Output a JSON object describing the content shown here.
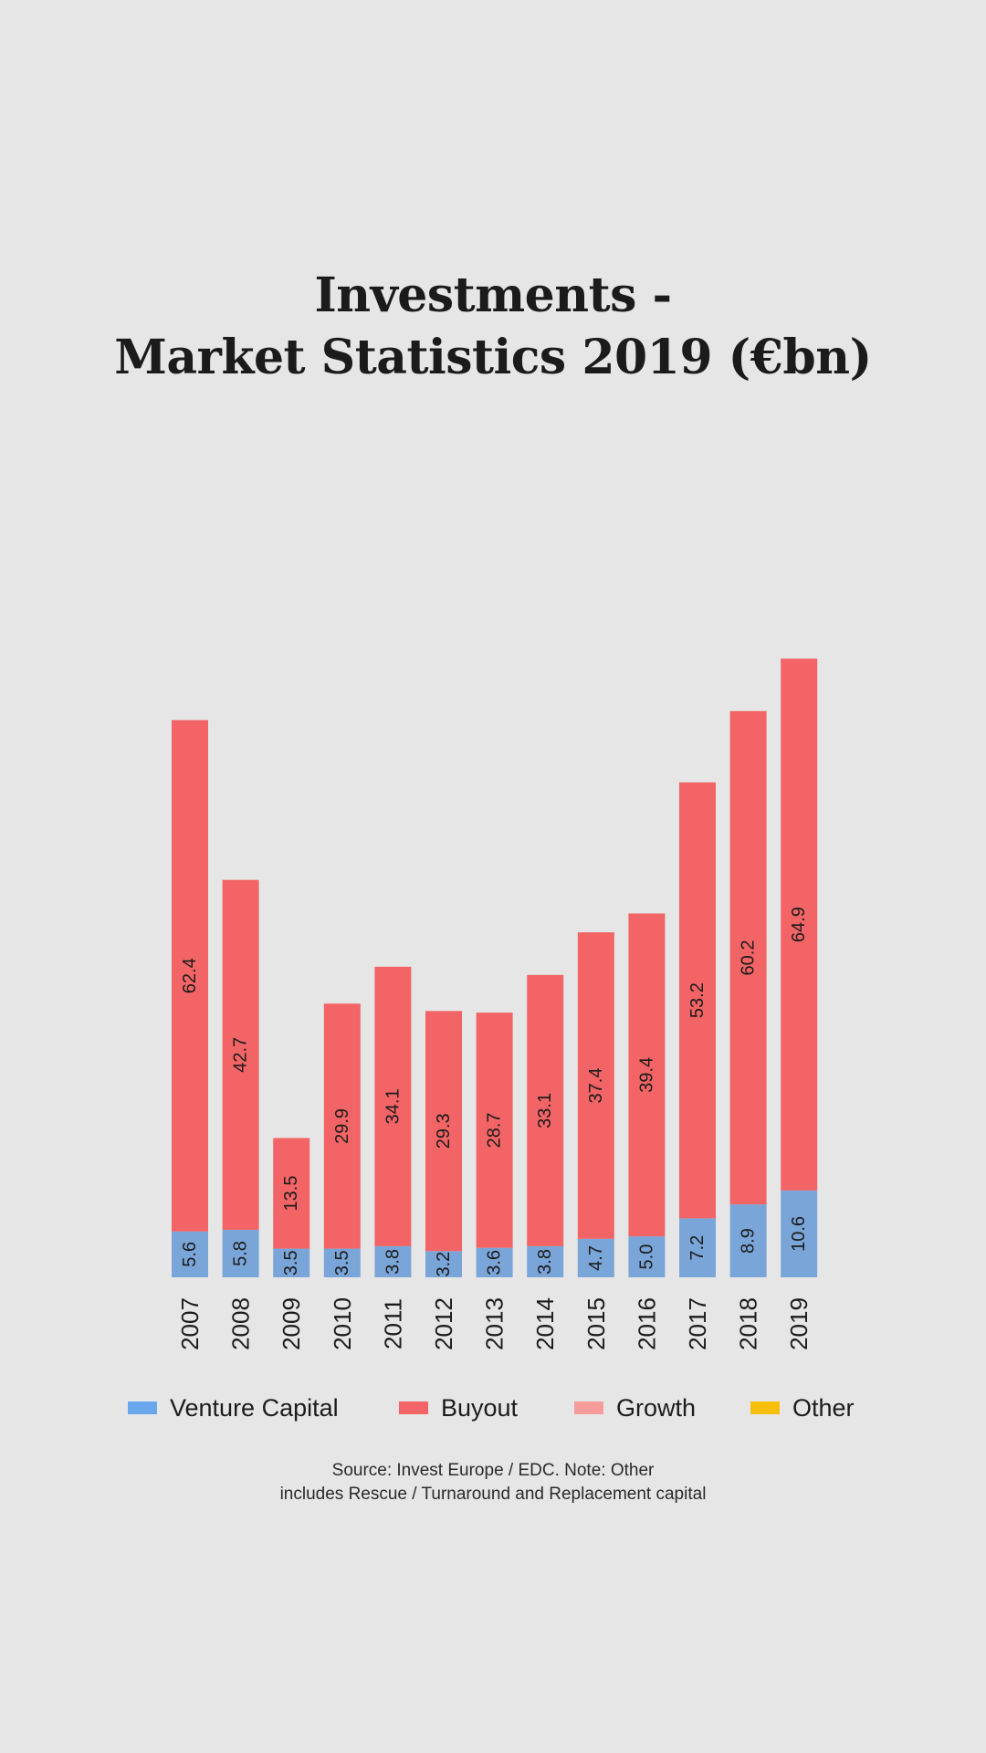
{
  "title_line1": "Investments -",
  "title_line2": "Market Statistics 2019 (€bn)",
  "source_line1": "Source: Invest Europe / EDC. Note: Other",
  "source_line2": "includes Rescue / Turnaround and Replacement capital",
  "colors": {
    "background": "#e7e6e7",
    "venture_capital": "#7aa5d8",
    "buyout": "#f26465",
    "growth": "#f79c9b",
    "other": "#f8bf0a",
    "legend_venture_capital": "#6aa8ee"
  },
  "chart_data": {
    "type": "bar",
    "stacked": true,
    "categories": [
      "2007",
      "2008",
      "2009",
      "2010",
      "2011",
      "2012",
      "2013",
      "2014",
      "2015",
      "2016",
      "2017",
      "2018",
      "2019"
    ],
    "series": [
      {
        "name": "Venture Capital",
        "values": [
          5.6,
          5.8,
          3.5,
          3.5,
          3.8,
          3.2,
          3.6,
          3.8,
          4.7,
          5.0,
          7.2,
          8.9,
          10.6
        ]
      },
      {
        "name": "Buyout",
        "values": [
          62.4,
          42.7,
          13.5,
          29.9,
          34.1,
          29.3,
          28.7,
          33.1,
          37.4,
          39.4,
          53.2,
          60.2,
          64.9
        ]
      },
      {
        "name": "Growth",
        "values": [
          0,
          0,
          0,
          0,
          0,
          0,
          0,
          0,
          0,
          0,
          0,
          0,
          0
        ]
      },
      {
        "name": "Other",
        "values": [
          0,
          0,
          0,
          0,
          0,
          0,
          0,
          0,
          0,
          0,
          0,
          0,
          0
        ]
      }
    ],
    "data_labels": true,
    "grid": false,
    "legend_placement": "bottom"
  }
}
